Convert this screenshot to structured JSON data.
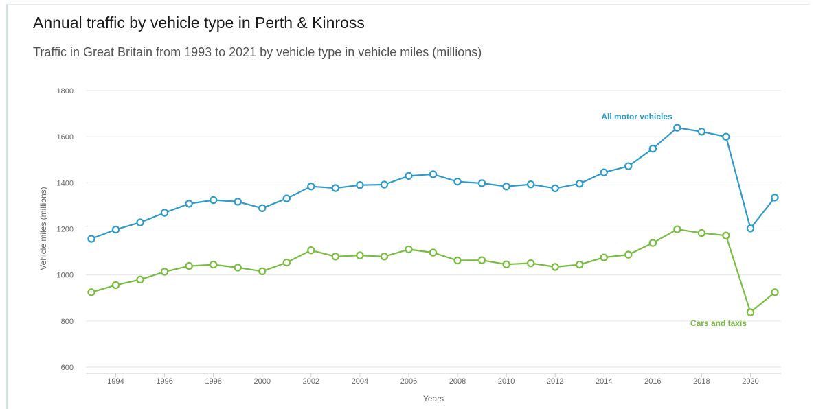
{
  "header": {
    "title": "Annual traffic by vehicle type in Perth & Kinross",
    "subtitle": "Traffic in Great Britain from 1993 to 2021 by vehicle type in vehicle miles (millions)"
  },
  "chart_data": {
    "type": "line",
    "title": "Annual traffic by vehicle type in Perth & Kinross",
    "subtitle": "Traffic in Great Britain from 1993 to 2021 by vehicle type in vehicle miles (millions)",
    "xlabel": "Years",
    "ylabel": "Vehicle miles (millions)",
    "x": [
      1993,
      1994,
      1995,
      1996,
      1997,
      1998,
      1999,
      2000,
      2001,
      2002,
      2003,
      2004,
      2005,
      2006,
      2007,
      2008,
      2009,
      2010,
      2011,
      2012,
      2013,
      2014,
      2015,
      2016,
      2017,
      2018,
      2019,
      2020,
      2021
    ],
    "xlim": [
      1993,
      2021
    ],
    "x_ticks": [
      1994,
      1996,
      1998,
      2000,
      2002,
      2004,
      2006,
      2008,
      2010,
      2012,
      2014,
      2016,
      2018,
      2020
    ],
    "ylim": [
      600,
      1800
    ],
    "y_ticks": [
      600,
      800,
      1000,
      1200,
      1400,
      1600,
      1800
    ],
    "grid": true,
    "legend": "inline labels",
    "series": [
      {
        "name": "All motor vehicles",
        "color": "#2d9ac9",
        "values": [
          1157,
          1197,
          1228,
          1270,
          1309,
          1325,
          1318,
          1290,
          1332,
          1384,
          1377,
          1390,
          1392,
          1430,
          1437,
          1405,
          1398,
          1384,
          1393,
          1376,
          1396,
          1445,
          1472,
          1548,
          1639,
          1622,
          1600,
          1202,
          1336
        ]
      },
      {
        "name": "Cars and taxis",
        "color": "#78bd3f",
        "values": [
          925,
          956,
          980,
          1014,
          1039,
          1045,
          1032,
          1016,
          1054,
          1107,
          1080,
          1085,
          1080,
          1111,
          1097,
          1063,
          1064,
          1046,
          1051,
          1035,
          1045,
          1076,
          1088,
          1139,
          1198,
          1182,
          1171,
          838,
          925
        ]
      }
    ]
  }
}
